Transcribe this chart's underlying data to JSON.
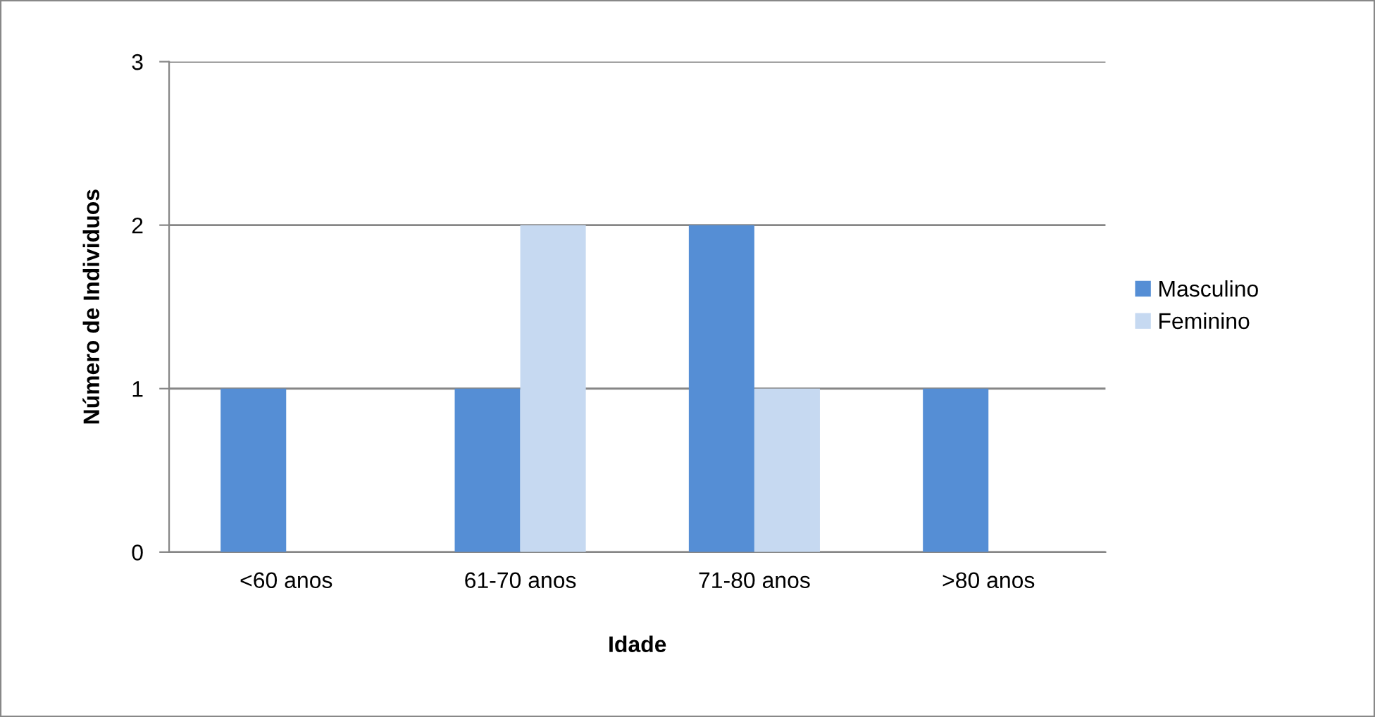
{
  "chart_data": {
    "type": "bar",
    "xlabel": "Idade",
    "ylabel": "Número de Individuos",
    "categories": [
      "<60 anos",
      "61-70 anos",
      "71-80 anos",
      ">80 anos"
    ],
    "series": [
      {
        "name": "Masculino",
        "color": "#558ed5",
        "values": [
          1,
          1,
          2,
          1
        ]
      },
      {
        "name": "Feminino",
        "color": "#c6d9f1",
        "values": [
          0,
          2,
          1,
          0
        ]
      }
    ],
    "ylim": [
      0,
      3
    ],
    "yticks": [
      0,
      1,
      2,
      3
    ],
    "grid": "y",
    "legend": "right"
  }
}
